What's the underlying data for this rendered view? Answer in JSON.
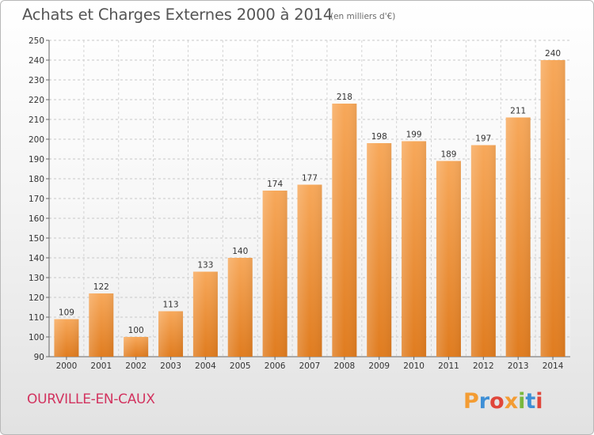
{
  "header": {
    "title": "Achats et Charges Externes 2000 à 2014",
    "subtitle": "(en milliers d'€)"
  },
  "footer": {
    "commune": "OURVILLE-EN-CAUX",
    "brand": "Proxiti",
    "brand_colors": [
      "#f39c33",
      "#3e8fd6",
      "#e0463a",
      "#f39c33",
      "#79b83d",
      "#3e8fd6",
      "#e0463a"
    ]
  },
  "chart_data": {
    "type": "bar",
    "title": "Achats et Charges Externes 2000 à 2014",
    "subtitle": "(en milliers d'€)",
    "categories": [
      "2000",
      "2001",
      "2002",
      "2003",
      "2004",
      "2005",
      "2006",
      "2007",
      "2008",
      "2009",
      "2010",
      "2011",
      "2012",
      "2013",
      "2014"
    ],
    "values": [
      109,
      122,
      100,
      113,
      133,
      140,
      174,
      177,
      218,
      198,
      199,
      189,
      197,
      211,
      240
    ],
    "ylim": [
      90,
      250
    ],
    "yticks": [
      90,
      100,
      110,
      120,
      130,
      140,
      150,
      160,
      170,
      180,
      190,
      200,
      210,
      220,
      230,
      240,
      250
    ],
    "grid": true,
    "legend": "none",
    "bar_color_top": "#f7a85a",
    "bar_color_bottom": "#e07c1f"
  }
}
